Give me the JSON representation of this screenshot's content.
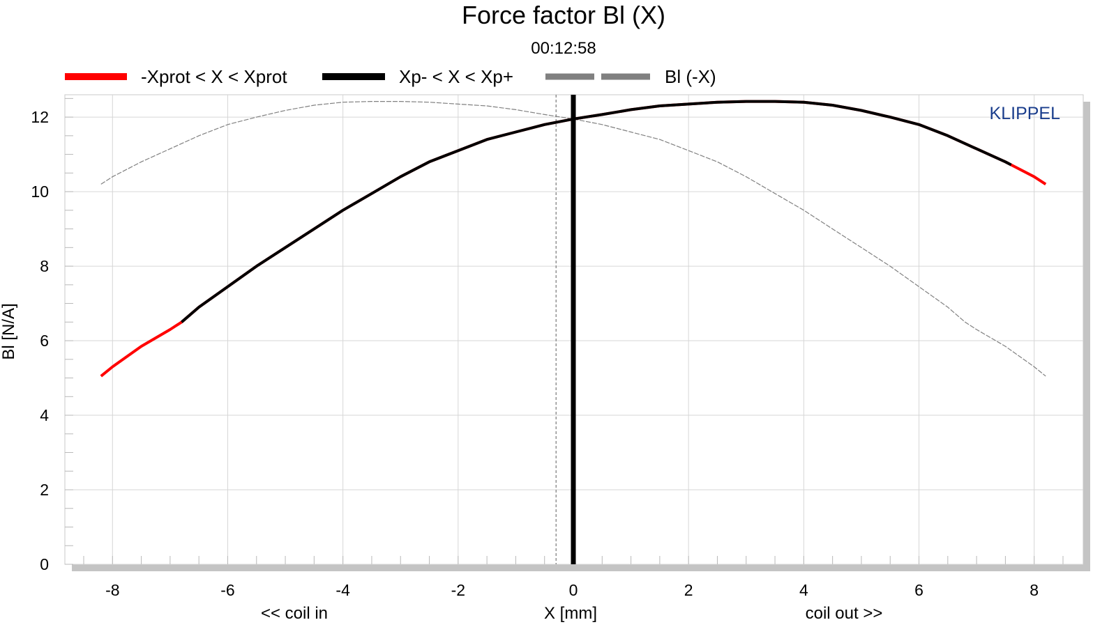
{
  "chart_data": {
    "type": "line",
    "title": "Force factor Bl (X)",
    "subtitle": "00:12:58",
    "xlabel": "X [mm]",
    "ylabel": "Bl [N/A]",
    "xlabel_left": "<< coil in",
    "xlabel_right": "coil out >>",
    "brand": "KLIPPEL",
    "xlim": [
      -8.5,
      8.5
    ],
    "ylim": [
      0,
      12.6
    ],
    "x_ticks": [
      -8,
      -6,
      -4,
      -2,
      0,
      2,
      4,
      6,
      8
    ],
    "y_ticks": [
      0,
      2,
      4,
      6,
      8,
      10,
      12
    ],
    "grid": true,
    "legend_position": "top",
    "rest_position_x": -0.3,
    "x": [
      -8.2,
      -8.0,
      -7.5,
      -7.0,
      -6.8,
      -6.5,
      -6.0,
      -5.5,
      -5.0,
      -4.5,
      -4.0,
      -3.5,
      -3.0,
      -2.5,
      -2.0,
      -1.5,
      -1.0,
      -0.5,
      0.0,
      0.5,
      1.0,
      1.5,
      2.0,
      2.5,
      3.0,
      3.5,
      4.0,
      4.5,
      5.0,
      5.5,
      6.0,
      6.5,
      7.0,
      7.5,
      7.6,
      8.0,
      8.2
    ],
    "series": [
      {
        "name": "-Xprot < X < Xprot",
        "color": "#ff0000",
        "x_range": [
          -8.2,
          8.2
        ],
        "values": [
          5.05,
          5.3,
          5.85,
          6.3,
          6.5,
          6.9,
          7.45,
          8.0,
          8.5,
          9.0,
          9.5,
          9.95,
          10.4,
          10.8,
          11.1,
          11.4,
          11.6,
          11.8,
          11.95,
          12.07,
          12.2,
          12.3,
          12.35,
          12.4,
          12.42,
          12.42,
          12.4,
          12.32,
          12.18,
          12.0,
          11.8,
          11.5,
          11.15,
          10.8,
          10.72,
          10.4,
          10.2
        ]
      },
      {
        "name": "Xp- < X < Xp+",
        "color": "#000000",
        "x_range": [
          -6.8,
          7.6
        ]
      },
      {
        "name": "Bl (-X)",
        "color": "#808080",
        "mirror_of": "-Xprot < X < Xprot"
      }
    ]
  }
}
